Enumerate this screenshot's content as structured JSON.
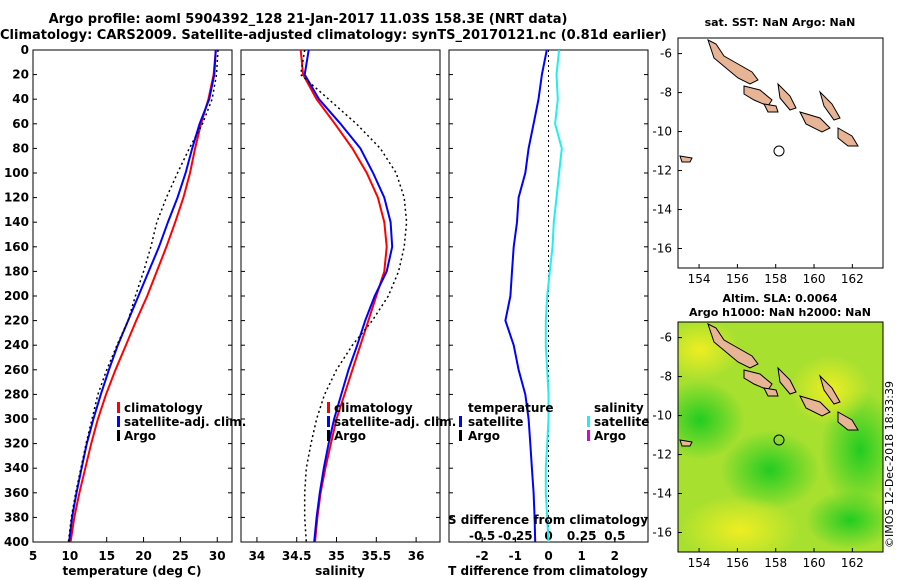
{
  "title_line1": "Argo profile: aoml 5904392_128 21-Jan-2017 11.03S 158.3E (NRT data)",
  "title_line2": "Climatology: CARS2009. Satellite-adjusted climatology: synTS_20170121.nc (0.81d earlier)",
  "colors": {
    "climatology": "#ff0000",
    "satellite": "#0000ff",
    "argo": "#000000",
    "salinity_diff": "#22eeee",
    "argo_s_legend": "#dd00dd"
  },
  "depth_ticks": [
    "0",
    "20",
    "40",
    "60",
    "80",
    "100",
    "120",
    "140",
    "160",
    "180",
    "200",
    "220",
    "240",
    "260",
    "280",
    "300",
    "320",
    "340",
    "360",
    "380",
    "400"
  ],
  "chart_data": [
    {
      "type": "line",
      "name": "temperature",
      "xlabel": "temperature (deg C)",
      "xlim": [
        5,
        32
      ],
      "ylim": [
        0,
        400
      ],
      "xticks": [
        "5",
        "10",
        "15",
        "20",
        "25",
        "30"
      ],
      "legend": [
        "climatology",
        "satellite-adj. clim.",
        "Argo"
      ],
      "depth": [
        0,
        20,
        40,
        60,
        80,
        100,
        120,
        140,
        160,
        180,
        200,
        220,
        240,
        260,
        280,
        300,
        320,
        340,
        360,
        380,
        400
      ],
      "series": [
        {
          "name": "climatology",
          "values": [
            29.8,
            29.5,
            28.8,
            27.8,
            27.0,
            26.3,
            25.4,
            24.3,
            23.1,
            21.8,
            20.5,
            19.0,
            17.6,
            16.2,
            14.9,
            13.8,
            12.9,
            12.1,
            11.3,
            10.6,
            10.1
          ]
        },
        {
          "name": "satellite-adj. clim.",
          "values": [
            29.8,
            29.6,
            28.9,
            27.6,
            26.6,
            25.7,
            24.6,
            23.3,
            22.1,
            20.7,
            19.3,
            17.9,
            16.5,
            15.3,
            14.2,
            13.2,
            12.3,
            11.6,
            10.9,
            10.3,
            9.9
          ]
        },
        {
          "name": "Argo",
          "values": [
            30.1,
            29.9,
            29.3,
            28.0,
            26.2,
            24.6,
            23.1,
            21.8,
            21.0,
            20.0,
            18.9,
            17.9,
            16.4,
            15.0,
            13.8,
            13.0,
            12.2,
            11.5,
            10.8,
            10.2,
            9.8
          ]
        }
      ]
    },
    {
      "type": "line",
      "name": "salinity",
      "xlabel": "salinity",
      "xlim": [
        33.8,
        36.3
      ],
      "ylim": [
        0,
        400
      ],
      "xticks": [
        "34",
        "34.5",
        "35",
        "35.5",
        "36"
      ],
      "legend": [
        "climatology",
        "satellite-adj. clim.",
        "Argo"
      ],
      "depth": [
        0,
        20,
        40,
        60,
        80,
        100,
        120,
        140,
        160,
        180,
        200,
        220,
        240,
        260,
        280,
        300,
        320,
        340,
        360,
        380,
        400
      ],
      "series": [
        {
          "name": "climatology",
          "values": [
            34.55,
            34.58,
            34.75,
            34.98,
            35.2,
            35.38,
            35.52,
            35.6,
            35.63,
            35.6,
            35.5,
            35.4,
            35.3,
            35.2,
            35.1,
            35.0,
            34.93,
            34.86,
            34.8,
            34.76,
            34.73
          ]
        },
        {
          "name": "satellite-adj. clim.",
          "values": [
            34.65,
            34.6,
            34.78,
            35.05,
            35.3,
            35.46,
            35.6,
            35.68,
            35.7,
            35.63,
            35.48,
            35.36,
            35.26,
            35.15,
            35.06,
            34.97,
            34.9,
            34.84,
            34.79,
            34.75,
            34.72
          ]
        },
        {
          "name": "Argo",
          "values": [
            34.6,
            34.55,
            34.9,
            35.25,
            35.55,
            35.75,
            35.85,
            35.88,
            35.85,
            35.78,
            35.65,
            35.45,
            35.2,
            35.0,
            34.85,
            34.75,
            34.68,
            34.62,
            34.6,
            34.6,
            34.62
          ]
        }
      ]
    },
    {
      "type": "line",
      "name": "differences",
      "xlabel": "T difference from climatology",
      "xlabel_top": "S difference from climatology",
      "xlim": [
        -3,
        3
      ],
      "s_xlim": [
        -0.75,
        0.75
      ],
      "ylim": [
        0,
        400
      ],
      "xticks": [
        "-2",
        "-1",
        "0",
        "1",
        "2"
      ],
      "s_xticks": [
        "-0.5",
        "-0.25",
        "0",
        "0.25",
        "0.5"
      ],
      "legend_temperature": {
        "header": "temperature",
        "entries": [
          "satellite",
          "Argo"
        ]
      },
      "legend_salinity": {
        "header": "salinity",
        "entries": [
          "satellite",
          "Argo"
        ]
      },
      "depth": [
        0,
        20,
        40,
        60,
        80,
        100,
        120,
        140,
        160,
        180,
        200,
        220,
        240,
        260,
        280,
        300,
        320,
        340,
        360,
        380,
        400
      ],
      "series": [
        {
          "name": "T satellite",
          "values": [
            -0.05,
            -0.2,
            -0.3,
            -0.45,
            -0.6,
            -0.7,
            -0.9,
            -0.95,
            -1.05,
            -1.1,
            -1.15,
            -1.3,
            -1.05,
            -0.9,
            -0.7,
            -0.6,
            -0.55,
            -0.5,
            -0.45,
            -0.42,
            -0.4
          ]
        },
        {
          "name": "S satellite",
          "values": [
            0.08,
            0.06,
            0.07,
            0.05,
            0.1,
            0.08,
            0.06,
            0.04,
            0.03,
            0.01,
            -0.01,
            -0.02,
            -0.02,
            -0.01,
            0.0,
            0.0,
            -0.01,
            -0.02,
            -0.02,
            -0.01,
            0.0
          ]
        }
      ]
    }
  ],
  "map_top": {
    "title": "sat. SST: NaN Argo: NaN",
    "yticks": [
      "-6",
      "-8",
      "-10",
      "-12",
      "-14",
      "-16"
    ],
    "xticks": [
      "154",
      "156",
      "158",
      "160",
      "162"
    ],
    "marker_lon": 158.3,
    "marker_lat": -11.03
  },
  "map_bottom": {
    "title_line1": "Altim. SLA: 0.0064",
    "title_line2": "Argo h1000: NaN h2000: NaN",
    "yticks": [
      "-6",
      "-8",
      "-10",
      "-12",
      "-14",
      "-16"
    ],
    "xticks": [
      "154",
      "156",
      "158",
      "160",
      "162"
    ],
    "marker_lon": 158.3,
    "marker_lat": -11.03
  },
  "credit": "©IMOS 12-Dec-2018 18:33:39"
}
